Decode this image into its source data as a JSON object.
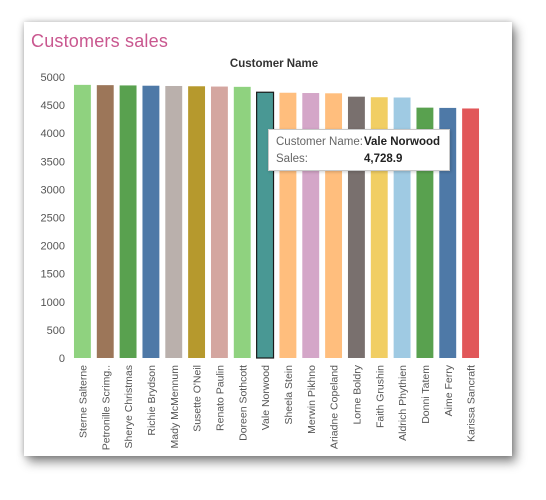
{
  "title": "Customers sales",
  "chart_data": {
    "type": "bar",
    "title": "Customer Name",
    "xlabel": "",
    "ylabel": "",
    "ylim": [
      0,
      5000
    ],
    "yticks": [
      0,
      500,
      1000,
      1500,
      2000,
      2500,
      3000,
      3500,
      4000,
      4500,
      5000
    ],
    "grid": false,
    "categories": [
      "Sterne Salterne",
      "Petronille Scrimg..",
      "Sherye Christmas",
      "Richie Brydson",
      "Mady McMennum",
      "Susette O'Neil",
      "Renato Paulin",
      "Doreen Sothcott",
      "Vale Norwood",
      "Sheela Stein",
      "Merwin Pikhno",
      "Ariadne Copeland",
      "Lorne Boldry",
      "Faith Grushin",
      "Aldrich Phythien",
      "Donni Tatem",
      "Aime Ferry",
      "Karissa Sancraft"
    ],
    "values": [
      4860,
      4855,
      4850,
      4845,
      4840,
      4835,
      4830,
      4825,
      4728.9,
      4720,
      4715,
      4710,
      4650,
      4640,
      4635,
      4455,
      4450,
      4440
    ],
    "colors": [
      "#8fd27f",
      "#9c7659",
      "#59a14f",
      "#4e79a7",
      "#bab0ac",
      "#b6992d",
      "#d4a6a0",
      "#8fd27f",
      "#499894",
      "#ffbe7d",
      "#d4a6c8",
      "#ffbe7d",
      "#79706e",
      "#f1ce63",
      "#9fcae3",
      "#59a14f",
      "#4e79a7",
      "#e15759"
    ],
    "highlight_index": 8
  },
  "tooltip": {
    "name_label": "Customer Name:",
    "name_value": "Vale Norwood",
    "sales_label": "Sales:",
    "sales_value": "4,728.9"
  }
}
